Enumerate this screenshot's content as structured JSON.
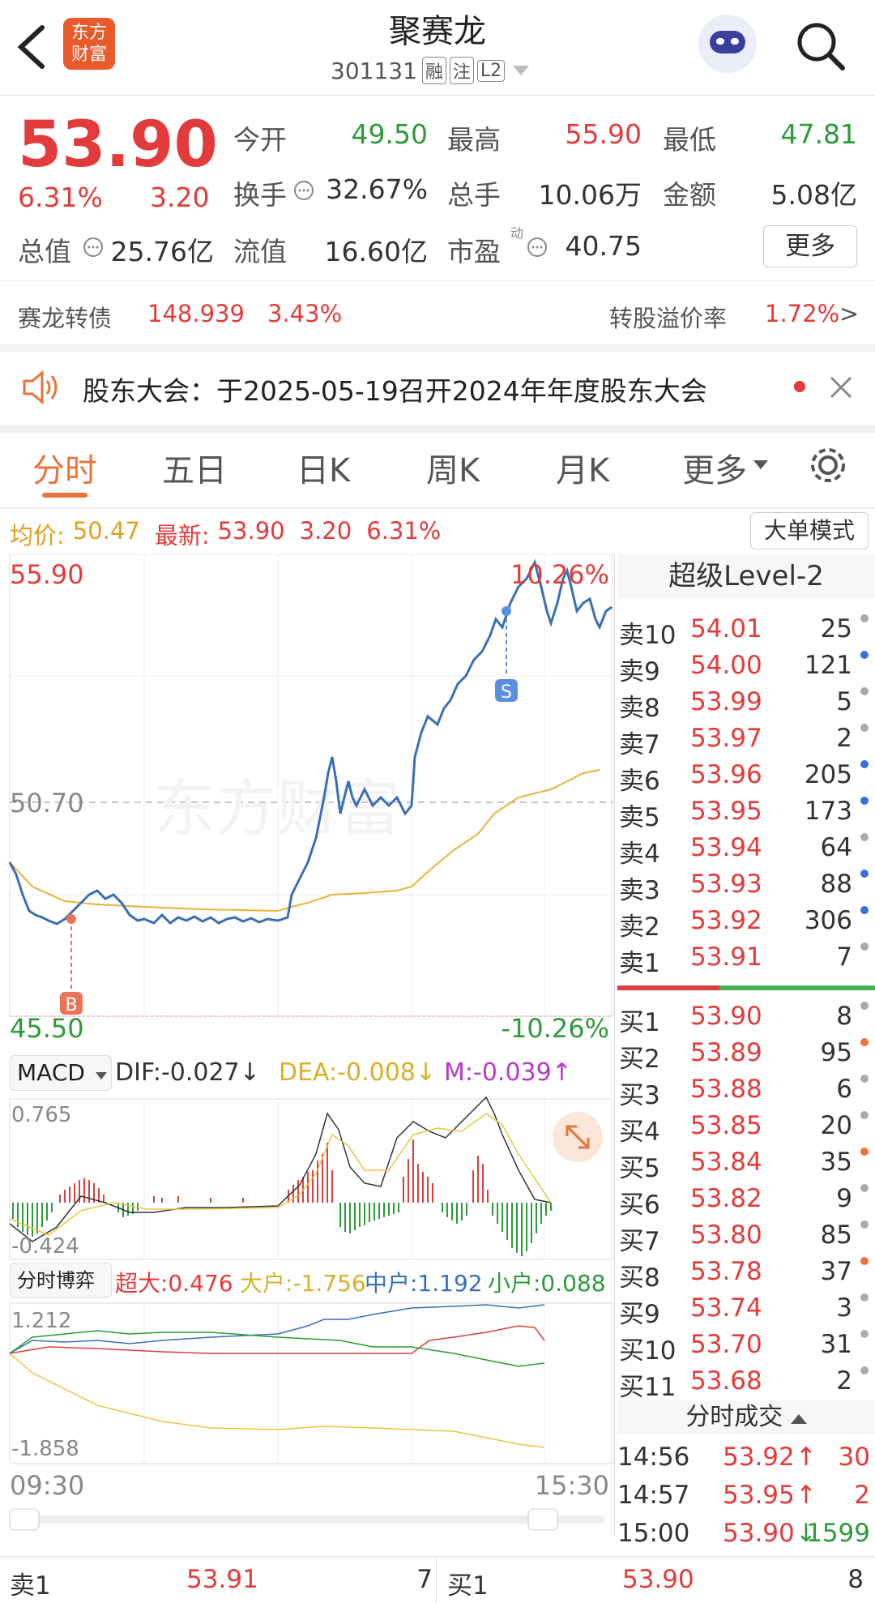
{
  "header": {
    "name": "聚赛龙",
    "code": "301131",
    "tags": [
      "融",
      "注",
      "L2"
    ],
    "logo_text_1": "东方",
    "logo_text_2": "财富"
  },
  "quote": {
    "price": "53.90",
    "change_pct": "6.31%",
    "change": "3.20",
    "open_label": "今开",
    "open": "49.50",
    "high_label": "最高",
    "high": "55.90",
    "low_label": "最低",
    "low": "47.81",
    "turnover_label": "换手",
    "turnover": "32.67%",
    "volume_label": "总手",
    "volume": "10.06万",
    "amount_label": "金额",
    "amount": "5.08亿",
    "mktcap_label": "总值",
    "mktcap": "25.76亿",
    "float_label": "流值",
    "float": "16.60亿",
    "pe_label": "市盈",
    "pe_sup": "动",
    "pe": "40.75",
    "more": "更多"
  },
  "bond": {
    "name": "赛龙转债",
    "price": "148.939",
    "pct": "3.43%",
    "premium_label": "转股溢价率",
    "premium": "1.72%",
    "arrow": ">"
  },
  "notice": {
    "text": "股东大会：于2025-05-19召开2024年年度股东大会"
  },
  "tabs": [
    "分时",
    "五日",
    "日K",
    "周K",
    "月K",
    "更多"
  ],
  "infobar": {
    "avg_label": "均价:",
    "avg": "50.47",
    "latest_label": "最新:",
    "latest": "53.90",
    "chg": "3.20",
    "pct": "6.31%",
    "mode_btn": "大单模式"
  },
  "chart": {
    "top_price": "55.90",
    "top_pct": "10.26%",
    "mid_price": "50.70",
    "bottom_price": "45.50",
    "bottom_pct": "-10.26%",
    "time_start": "09:30",
    "time_end": "15:30",
    "buy_marker": "B",
    "sell_marker": "S",
    "watermark": "东方财富"
  },
  "macd": {
    "label": "MACD",
    "dif": "DIF:-0.027",
    "dea": "DEA:-0.008",
    "m": "M:-0.039",
    "top": "0.765",
    "bottom": "-0.424"
  },
  "game": {
    "label": "分时博弈",
    "super": "超大:0.476",
    "large": "大户:-1.756",
    "medium": "中户:1.192",
    "small": "小户:0.088",
    "top": "1.212",
    "bottom": "-1.858"
  },
  "level2_title": "超级Level-2",
  "sells": [
    {
      "label": "卖10",
      "price": "54.01",
      "vol": "25",
      "dot": "#aaaaaa"
    },
    {
      "label": "卖9",
      "price": "54.00",
      "vol": "121",
      "dot": "#3a6fd8"
    },
    {
      "label": "卖8",
      "price": "53.99",
      "vol": "5",
      "dot": "#aaaaaa"
    },
    {
      "label": "卖7",
      "price": "53.97",
      "vol": "2",
      "dot": "#aaaaaa"
    },
    {
      "label": "卖6",
      "price": "53.96",
      "vol": "205",
      "dot": "#3a6fd8"
    },
    {
      "label": "卖5",
      "price": "53.95",
      "vol": "173",
      "dot": "#3a6fd8"
    },
    {
      "label": "卖4",
      "price": "53.94",
      "vol": "64",
      "dot": "#aaaaaa"
    },
    {
      "label": "卖3",
      "price": "53.93",
      "vol": "88",
      "dot": "#3a6fd8"
    },
    {
      "label": "卖2",
      "price": "53.92",
      "vol": "306",
      "dot": "#3a6fd8"
    },
    {
      "label": "卖1",
      "price": "53.91",
      "vol": "7",
      "dot": "#aaaaaa"
    }
  ],
  "buys": [
    {
      "label": "买1",
      "price": "53.90",
      "vol": "8",
      "dot": "#aaaaaa"
    },
    {
      "label": "买2",
      "price": "53.89",
      "vol": "95",
      "dot": "#e8743a"
    },
    {
      "label": "买3",
      "price": "53.88",
      "vol": "6",
      "dot": "#aaaaaa"
    },
    {
      "label": "买4",
      "price": "53.85",
      "vol": "20",
      "dot": "#aaaaaa"
    },
    {
      "label": "买5",
      "price": "53.84",
      "vol": "35",
      "dot": "#e8743a"
    },
    {
      "label": "买6",
      "price": "53.82",
      "vol": "9",
      "dot": "#aaaaaa"
    },
    {
      "label": "买7",
      "price": "53.80",
      "vol": "85",
      "dot": "#aaaaaa"
    },
    {
      "label": "买8",
      "price": "53.78",
      "vol": "37",
      "dot": "#e8743a"
    },
    {
      "label": "买9",
      "price": "53.74",
      "vol": "3",
      "dot": "#aaaaaa"
    },
    {
      "label": "买10",
      "price": "53.70",
      "vol": "31",
      "dot": "#aaaaaa"
    },
    {
      "label": "买11",
      "price": "53.68",
      "vol": "2",
      "dot": "#aaaaaa"
    }
  ],
  "ticks_title": "分时成交",
  "ticks": [
    {
      "time": "14:56",
      "price": "53.92",
      "dir": "↑",
      "vol": "30",
      "color": "#e33b3b"
    },
    {
      "time": "14:57",
      "price": "53.95",
      "dir": "↑",
      "vol": "2",
      "color": "#e33b3b"
    },
    {
      "time": "15:00",
      "price": "53.90",
      "dir": "↓",
      "vol": "1599",
      "color": "#2e9a3a"
    }
  ],
  "bottom_bar": {
    "sell_label": "卖1",
    "sell_price": "53.91",
    "sell_vol": "7",
    "buy_label": "买1",
    "buy_price": "53.90",
    "buy_vol": "8"
  }
}
